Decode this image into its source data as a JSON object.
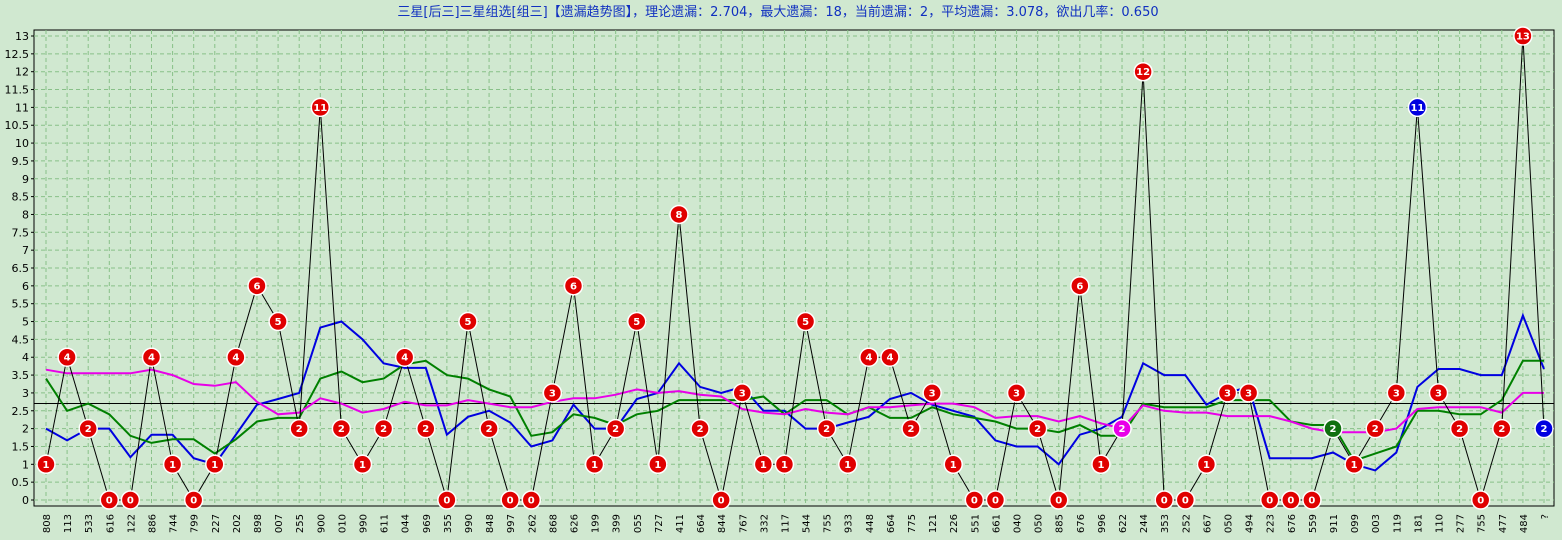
{
  "title": "三星[后三]三星组选[组三]【遗漏趋势图】，理论遗漏：2.704，最大遗漏：18，当前遗漏：2，平均遗漏：3.078，欲出几率：0.650",
  "chart_data": {
    "type": "line",
    "title": "三星[后三]三星组选[组三]【遗漏趋势图】，理论遗漏：2.704，最大遗漏：18，当前遗漏：2，平均遗漏：3.078，欲出几率：0.650",
    "categories": [
      "808",
      "113",
      "533",
      "616",
      "122",
      "886",
      "744",
      "799",
      "227",
      "202",
      "898",
      "007",
      "255",
      "900",
      "010",
      "990",
      "611",
      "044",
      "969",
      "355",
      "990",
      "848",
      "997",
      "262",
      "868",
      "626",
      "199",
      "399",
      "055",
      "727",
      "411",
      "664",
      "844",
      "767",
      "332",
      "117",
      "544",
      "755",
      "933",
      "448",
      "664",
      "775",
      "121",
      "226",
      "551",
      "661",
      "040",
      "050",
      "885",
      "676",
      "996",
      "622",
      "244",
      "353",
      "252",
      "667",
      "050",
      "494",
      "223",
      "676",
      "559",
      "911",
      "099",
      "003",
      "119",
      "181",
      "110",
      "277",
      "755",
      "477",
      "484",
      "?"
    ],
    "ylim": [
      0,
      13
    ],
    "yticks": [
      "0",
      "0.5",
      "1",
      "1.5",
      "2",
      "2.5",
      "3",
      "3.5",
      "4",
      "4.5",
      "5",
      "5.5",
      "6",
      "6.5",
      "7",
      "7.5",
      "8",
      "8.5",
      "9",
      "9.5",
      "10",
      "10.5",
      "11",
      "11.5",
      "12",
      "12.5",
      "13"
    ],
    "theoretical_omission": 2.704,
    "grid": true,
    "series": [
      {
        "values": [
          1,
          4,
          2,
          0,
          0,
          4,
          1,
          0,
          1,
          4,
          6,
          5,
          2,
          11,
          2,
          1,
          2,
          4,
          2,
          0,
          5,
          2,
          0,
          0,
          3,
          6,
          1,
          2,
          5,
          1,
          8,
          2,
          0,
          3,
          1,
          1,
          5,
          2,
          1,
          4,
          4,
          2,
          3,
          1,
          0,
          0,
          3,
          2,
          0,
          6,
          1,
          2,
          12,
          0,
          0,
          1,
          3,
          3,
          0,
          0,
          0,
          2,
          1,
          2,
          3,
          11,
          3,
          2,
          0,
          2,
          13,
          2
        ],
        "marker_colors": [
          "#e00000",
          "#e00000",
          "#e00000",
          "#e00000",
          "#e00000",
          "#e00000",
          "#e00000",
          "#e00000",
          "#e00000",
          "#e00000",
          "#e00000",
          "#e00000",
          "#e00000",
          "#e00000",
          "#e00000",
          "#e00000",
          "#e00000",
          "#e00000",
          "#e00000",
          "#e00000",
          "#e00000",
          "#e00000",
          "#e00000",
          "#e00000",
          "#e00000",
          "#e00000",
          "#e00000",
          "#e00000",
          "#e00000",
          "#e00000",
          "#e00000",
          "#e00000",
          "#e00000",
          "#e00000",
          "#e00000",
          "#e00000",
          "#e00000",
          "#e00000",
          "#e00000",
          "#e00000",
          "#e00000",
          "#e00000",
          "#e00000",
          "#e00000",
          "#e00000",
          "#e00000",
          "#e00000",
          "#e00000",
          "#e00000",
          "#e00000",
          "#e00000",
          "#e800e8",
          "#e00000",
          "#e00000",
          "#e00000",
          "#e00000",
          "#e00000",
          "#e00000",
          "#e00000",
          "#e00000",
          "#e00000",
          "#107010",
          "#e00000",
          "#e00000",
          "#e00000",
          "#0000e0",
          "#e00000",
          "#e00000",
          "#e00000",
          "#e00000",
          "#e00000",
          "#0000e0"
        ],
        "color": "#000000"
      },
      {
        "values": [
          2.0,
          1.67,
          2.0,
          2.0,
          1.2,
          1.83,
          1.83,
          1.17,
          1.0,
          1.83,
          2.67,
          2.83,
          3.0,
          4.83,
          5.0,
          4.5,
          3.83,
          3.7,
          3.7,
          1.83,
          2.33,
          2.5,
          2.17,
          1.5,
          1.67,
          2.67,
          2.0,
          2.0,
          2.83,
          3.0,
          3.83,
          3.17,
          3.0,
          3.17,
          2.5,
          2.5,
          2.0,
          2.0,
          2.17,
          2.33,
          2.83,
          3.0,
          2.67,
          2.5,
          2.33,
          1.67,
          1.5,
          1.5,
          1.0,
          1.83,
          2.0,
          2.33,
          3.83,
          3.5,
          3.5,
          2.67,
          3.0,
          3.17,
          1.17,
          1.17,
          1.17,
          1.33,
          1.0,
          0.83,
          1.33,
          3.17,
          3.67,
          3.67,
          3.5,
          3.5,
          5.17,
          3.67
        ],
        "color": "#0000e0"
      },
      {
        "values": [
          3.4,
          2.5,
          2.7,
          2.4,
          1.8,
          1.6,
          1.7,
          1.7,
          1.3,
          1.7,
          2.2,
          2.3,
          2.3,
          3.4,
          3.6,
          3.3,
          3.4,
          3.8,
          3.9,
          3.5,
          3.4,
          3.1,
          2.9,
          1.8,
          1.9,
          2.4,
          2.3,
          2.1,
          2.4,
          2.5,
          2.8,
          2.8,
          2.8,
          2.8,
          2.9,
          2.4,
          2.8,
          2.8,
          2.4,
          2.6,
          2.3,
          2.3,
          2.6,
          2.4,
          2.3,
          2.2,
          2.0,
          2.0,
          1.9,
          2.1,
          1.8,
          1.8,
          2.7,
          2.6,
          2.6,
          2.6,
          2.8,
          2.8,
          2.8,
          2.2,
          2.1,
          2.1,
          1.1,
          1.3,
          1.5,
          2.5,
          2.5,
          2.4,
          2.4,
          2.8,
          3.9,
          3.9
        ],
        "color": "#008000"
      },
      {
        "values": [
          3.65,
          3.55,
          3.55,
          3.55,
          3.55,
          3.65,
          3.5,
          3.25,
          3.2,
          3.3,
          2.75,
          2.4,
          2.45,
          2.85,
          2.7,
          2.45,
          2.55,
          2.75,
          2.65,
          2.65,
          2.8,
          2.7,
          2.6,
          2.6,
          2.75,
          2.85,
          2.85,
          2.95,
          3.1,
          3.0,
          3.05,
          2.95,
          2.9,
          2.55,
          2.45,
          2.4,
          2.55,
          2.45,
          2.4,
          2.6,
          2.6,
          2.65,
          2.7,
          2.7,
          2.6,
          2.3,
          2.35,
          2.35,
          2.2,
          2.35,
          2.15,
          2.0,
          2.65,
          2.5,
          2.45,
          2.45,
          2.35,
          2.35,
          2.35,
          2.2,
          2.0,
          1.9,
          1.9,
          1.9,
          2.0,
          2.55,
          2.6,
          2.6,
          2.6,
          2.45,
          3.0,
          3.0
        ],
        "color": "#e800e8"
      }
    ]
  }
}
